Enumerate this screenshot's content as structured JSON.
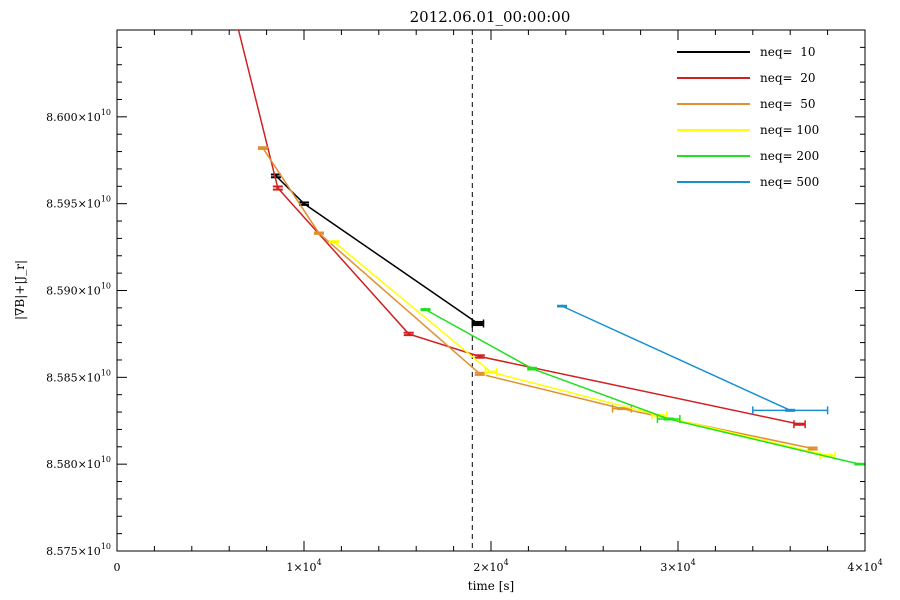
{
  "chart_data": {
    "type": "line",
    "title": "2012.06.01_00:00:00",
    "xlabel": "time [s]",
    "ylabel": "|∇B|+|J_r|",
    "xlim": [
      0,
      40000
    ],
    "ylim": [
      85750000000.0,
      86050000000.0
    ],
    "x_ticks": [
      {
        "value": 0,
        "mant": "0",
        "exp": ""
      },
      {
        "value": 10000,
        "mant": "1×10",
        "exp": "4"
      },
      {
        "value": 20000,
        "mant": "2×10",
        "exp": "4"
      },
      {
        "value": 30000,
        "mant": "3×10",
        "exp": "4"
      },
      {
        "value": 40000,
        "mant": "4×10",
        "exp": "4"
      }
    ],
    "y_ticks": [
      {
        "value": 85750000000.0,
        "mant": "8.575×10",
        "exp": "10"
      },
      {
        "value": 85800000000.0,
        "mant": "8.580×10",
        "exp": "10"
      },
      {
        "value": 85850000000.0,
        "mant": "8.585×10",
        "exp": "10"
      },
      {
        "value": 85900000000.0,
        "mant": "8.590×10",
        "exp": "10"
      },
      {
        "value": 85950000000.0,
        "mant": "8.595×10",
        "exp": "10"
      },
      {
        "value": 86000000000.0,
        "mant": "8.600×10",
        "exp": "10"
      }
    ],
    "vline_x": 19000,
    "grid": false,
    "legend_position": "top-right",
    "series": [
      {
        "name": "neq=  10",
        "color": "#000000",
        "points": [
          {
            "x": 8500,
            "y": 85966000000.0,
            "yerr": 800000.0,
            "xerr": 0
          },
          {
            "x": 10000,
            "y": 85950000000.0,
            "yerr": 700000.0,
            "xerr": 0
          },
          {
            "x": 19300,
            "y": 85881000000.0,
            "yerr": 900000.0,
            "xerr": 300
          }
        ]
      },
      {
        "name": "neq=  20",
        "color": "#d02020",
        "points": [
          {
            "x": 6500,
            "y": 86050000000.0,
            "yerr": 0,
            "xerr": 0,
            "start": true
          },
          {
            "x": 8600,
            "y": 85959000000.0,
            "yerr": 900000.0,
            "xerr": 0
          },
          {
            "x": 15600,
            "y": 85875000000.0,
            "yerr": 700000.0,
            "xerr": 0
          },
          {
            "x": 19400,
            "y": 85862000000.0,
            "yerr": 700000.0,
            "xerr": 0
          },
          {
            "x": 36500,
            "y": 85823000000.0,
            "yerr": 300000.0,
            "xerr": 300
          }
        ]
      },
      {
        "name": "neq=  50",
        "color": "#e09030",
        "points": [
          {
            "x": 7800,
            "y": 85982000000.0,
            "yerr": 500000.0,
            "xerr": 0
          },
          {
            "x": 10800,
            "y": 85933000000.0,
            "yerr": 400000.0,
            "xerr": 0
          },
          {
            "x": 19400,
            "y": 85852000000.0,
            "yerr": 600000.0,
            "xerr": 0
          },
          {
            "x": 27000,
            "y": 85832000000.0,
            "yerr": 300000.0,
            "xerr": 500
          },
          {
            "x": 37200,
            "y": 85809000000.0,
            "yerr": 600000.0,
            "xerr": 0
          }
        ]
      },
      {
        "name": "neq= 100",
        "color": "#ffff00",
        "points": [
          {
            "x": 11600,
            "y": 85928000000.0,
            "yerr": 400000.0,
            "xerr": 0
          },
          {
            "x": 20000,
            "y": 85853000000.0,
            "yerr": 300000.0,
            "xerr": 300
          },
          {
            "x": 29000,
            "y": 85828000000.0,
            "yerr": 300000.0,
            "xerr": 400
          },
          {
            "x": 38000,
            "y": 85805000000.0,
            "yerr": 400000.0,
            "xerr": 400
          }
        ]
      },
      {
        "name": "neq= 200",
        "color": "#20e020",
        "points": [
          {
            "x": 16500,
            "y": 85889000000.0,
            "yerr": 300000.0,
            "xerr": 0
          },
          {
            "x": 22200,
            "y": 85855000000.0,
            "yerr": 500000.0,
            "xerr": 0
          },
          {
            "x": 29500,
            "y": 85826000000.0,
            "yerr": 300000.0,
            "xerr": 600
          },
          {
            "x": 39700,
            "y": 85800000000.0,
            "yerr": 200000.0,
            "xerr": 0
          }
        ]
      },
      {
        "name": "neq= 500",
        "color": "#1890d0",
        "points": [
          {
            "x": 23800,
            "y": 85891000000.0,
            "yerr": 200000.0,
            "xerr": 0
          },
          {
            "x": 36000,
            "y": 85831000000.0,
            "yerr": 300000.0,
            "xerr": 2000
          }
        ]
      }
    ]
  }
}
